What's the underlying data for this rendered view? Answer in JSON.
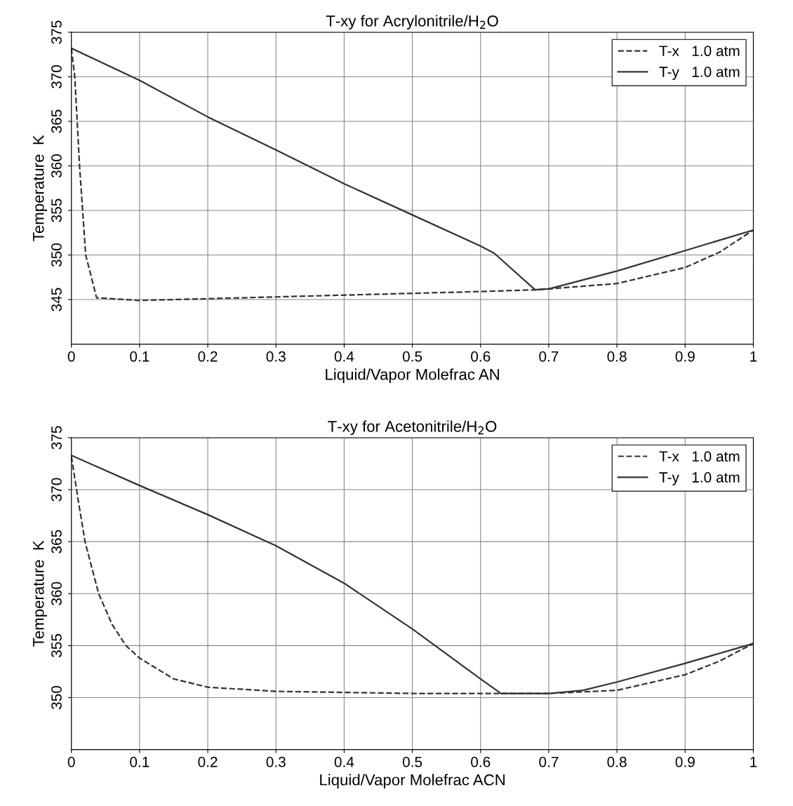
{
  "chart_data": [
    {
      "type": "line",
      "title": "T-xy for Acrylonitrile/H$_{2}$O",
      "xlabel": "Liquid/Vapor Molefrac AN",
      "ylabel": "Temperature  K",
      "xlim": [
        0,
        1
      ],
      "xticks": [
        0,
        0.1,
        0.2,
        0.3,
        0.4,
        0.5,
        0.6,
        0.7,
        0.8,
        0.9,
        1
      ],
      "ylim": [
        340,
        375
      ],
      "yticks": [
        345,
        350,
        355,
        360,
        365,
        370,
        375
      ],
      "grid": true,
      "legend": "top right",
      "series": [
        {
          "name": "T-x   1.0 atm",
          "color": "#333333",
          "line_style": "dashed",
          "x": [
            0,
            0.005,
            0.012,
            0.021,
            0.037,
            0.1,
            0.2,
            0.3,
            0.4,
            0.5,
            0.6,
            0.68,
            0.7,
            0.8,
            0.9,
            0.95,
            1.0
          ],
          "values": [
            373.2,
            370,
            360,
            350,
            345.2,
            344.9,
            345.1,
            345.3,
            345.5,
            345.7,
            345.9,
            346.1,
            346.2,
            346.8,
            348.6,
            350.3,
            352.8
          ]
        },
        {
          "name": "T-y   1.0 atm",
          "color": "#333333",
          "line_style": "solid",
          "x": [
            0,
            0.1,
            0.2,
            0.3,
            0.4,
            0.5,
            0.6,
            0.62,
            0.68,
            0.7,
            0.8,
            0.9,
            1.0
          ],
          "values": [
            373.2,
            369.6,
            365.5,
            361.8,
            358,
            354.5,
            351,
            350.2,
            346.1,
            346.2,
            348.2,
            350.5,
            352.8
          ]
        }
      ]
    },
    {
      "type": "line",
      "title": "T-xy for Acetonitrile/H$_{2}$O",
      "xlabel": "Liquid/Vapor Molefrac ACN",
      "ylabel": "Temperature  K",
      "xlim": [
        0,
        1
      ],
      "xticks": [
        0,
        0.1,
        0.2,
        0.3,
        0.4,
        0.5,
        0.6,
        0.7,
        0.8,
        0.9,
        1
      ],
      "ylim": [
        345,
        375
      ],
      "yticks": [
        350,
        355,
        360,
        365,
        370,
        375
      ],
      "grid": true,
      "legend": "top right",
      "series": [
        {
          "name": "T-x   1.0 atm",
          "color": "#333333",
          "line_style": "dashed",
          "x": [
            0,
            0.01,
            0.02,
            0.04,
            0.06,
            0.08,
            0.1,
            0.15,
            0.2,
            0.3,
            0.4,
            0.5,
            0.6,
            0.7,
            0.8,
            0.9,
            0.95,
            1.0
          ],
          "values": [
            373.2,
            369,
            365,
            360,
            357,
            355,
            353.8,
            351.8,
            351,
            350.6,
            350.5,
            350.4,
            350.4,
            350.4,
            350.7,
            352.2,
            353.5,
            355.2
          ]
        },
        {
          "name": "T-y   1.0 atm",
          "color": "#333333",
          "line_style": "solid",
          "x": [
            0,
            0.1,
            0.2,
            0.3,
            0.4,
            0.5,
            0.6,
            0.63,
            0.7,
            0.75,
            0.8,
            0.9,
            1.0
          ],
          "values": [
            373.3,
            370.4,
            367.6,
            364.6,
            361,
            356.6,
            351.8,
            350.4,
            350.4,
            350.7,
            351.5,
            353.3,
            355.2
          ]
        }
      ]
    }
  ]
}
